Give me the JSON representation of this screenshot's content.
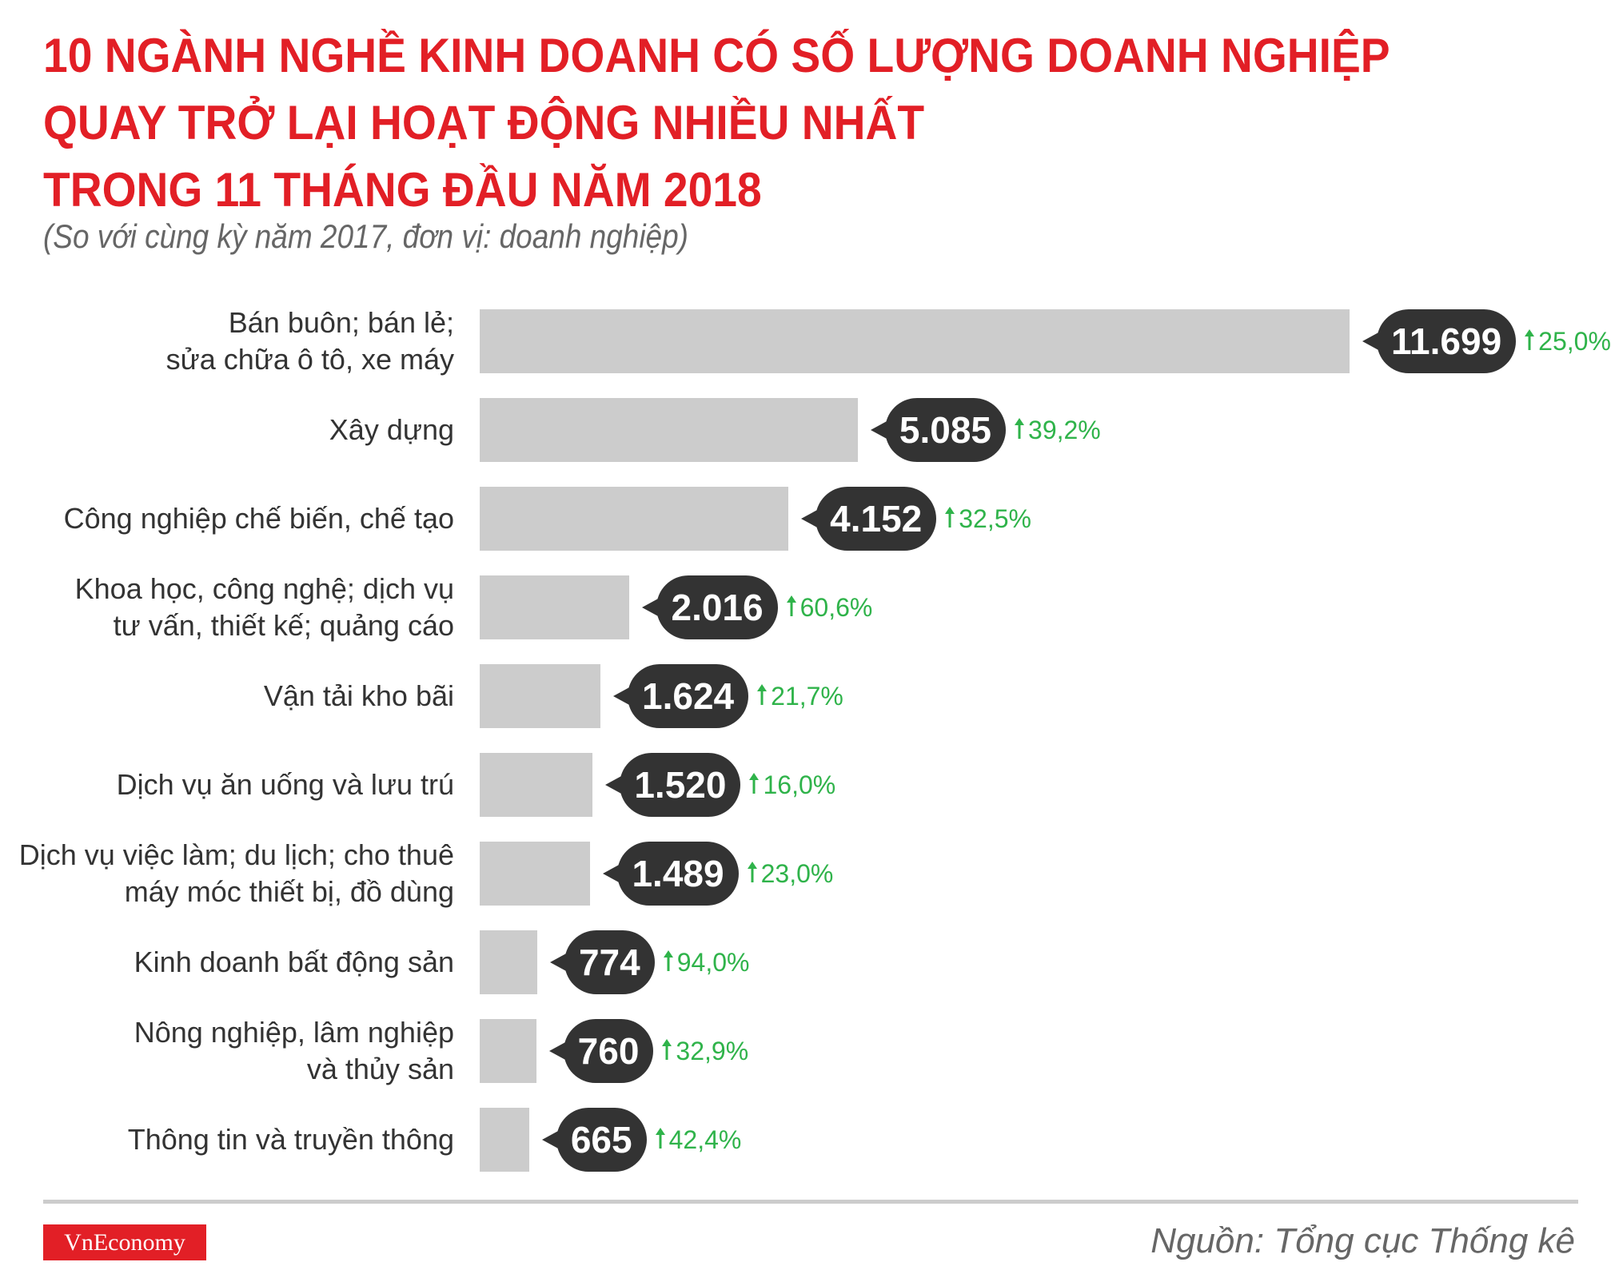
{
  "title_lines": [
    "10 NGÀNH NGHỀ KINH DOANH CÓ SỐ LƯỢNG DOANH NGHIỆP",
    "QUAY TRỞ LẠI HOẠT ĐỘNG NHIỀU NHẤT",
    "TRONG 11 THÁNG ĐẦU NĂM 2018"
  ],
  "subtitle": "(So với cùng kỳ năm 2017, đơn vị: doanh nghiệp)",
  "source": "Nguồn: Tổng cục Thống kê",
  "logo": "VnEconomy",
  "colors": {
    "title": "#e21f26",
    "bar": "#cccccc",
    "bubble": "#333333",
    "change": "#2fb34a"
  },
  "chart_data": {
    "type": "bar",
    "orientation": "horizontal",
    "title": "10 NGÀNH NGHỀ KINH DOANH CÓ SỐ LƯỢNG DOANH NGHIỆP QUAY TRỞ LẠI HOẠT ĐỘNG NHIỀU NHẤT TRONG 11 THÁNG ĐẦU NĂM 2018",
    "categories": [
      [
        "Bán buôn; bán lẻ;",
        "sửa chữa ô tô, xe máy"
      ],
      [
        "Xây dựng"
      ],
      [
        "Công nghiệp chế biến, chế tạo"
      ],
      [
        "Khoa học, công nghệ; dịch vụ",
        "tư vấn, thiết kế; quảng cáo"
      ],
      [
        "Vận tải kho bãi"
      ],
      [
        "Dịch vụ ăn uống và lưu trú"
      ],
      [
        "Dịch vụ việc làm; du lịch; cho thuê",
        "máy móc thiết bị, đồ dùng"
      ],
      [
        "Kinh doanh bất động sản"
      ],
      [
        "Nông nghiệp, lâm nghiệp",
        "và thủy sản"
      ],
      [
        "Thông tin và truyền thông"
      ]
    ],
    "values": [
      11699,
      5085,
      4152,
      2016,
      1624,
      1520,
      1489,
      774,
      760,
      665
    ],
    "value_labels": [
      "11.699",
      "5.085",
      "4.152",
      "2.016",
      "1.624",
      "1.520",
      "1.489",
      "774",
      "760",
      "665"
    ],
    "changes": [
      "25,0%",
      "39,2%",
      "32,5%",
      "60,6%",
      "21,7%",
      "16,0%",
      "23,0%",
      "94,0%",
      "32,9%",
      "42,4%"
    ],
    "change_icon": "arrow-up-icon",
    "grid": false
  }
}
